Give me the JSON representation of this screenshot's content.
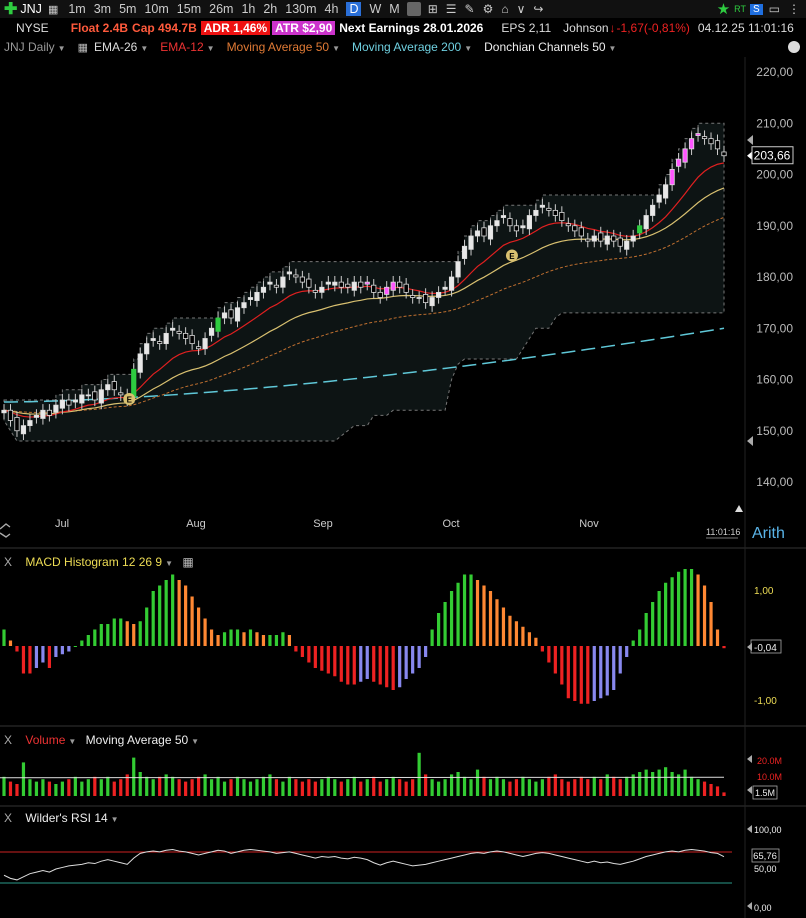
{
  "toolbar": {
    "symbol": "JNJ",
    "timeframes": [
      "1m",
      "3m",
      "5m",
      "10m",
      "15m",
      "26m",
      "1h",
      "2h",
      "130m",
      "4h",
      "D",
      "W",
      "M"
    ],
    "active_timeframe": "D",
    "rt_label": "RT",
    "s_label": "S"
  },
  "info": {
    "exchange": "NYSE",
    "float": "Float 2.4B",
    "cap": "Cap 494.7B",
    "adr_label": "ADR",
    "adr_value": "1,46%",
    "atr": "ATR $2,90",
    "earnings": "Next Earnings 28.01.2026",
    "eps": "EPS 2,11",
    "company": "Johnson",
    "change": "-1,67(-0,81%)",
    "datetime": "04.12.25 11:01:16"
  },
  "indicators": {
    "chart_name": "JNJ Daily",
    "ema26": "EMA-26",
    "ema12": "EMA-12",
    "ma50": "Moving Average 50",
    "ma200": "Moving Average 200",
    "donchian": "Donchian Channels 50"
  },
  "colors": {
    "up": "#e8e8e8",
    "down": "#000000",
    "green": "#2ecc40",
    "magenta": "#ff55ff",
    "ema12": "#e02020",
    "ema26": "#d8c070",
    "ma50": "#c07030",
    "ma200": "#5fc8d8",
    "macd_green": "#33cc33",
    "macd_orange": "#ff8833",
    "macd_red": "#ee2222",
    "macd_blue": "#8888ee"
  },
  "price_axis": {
    "ticks": [
      "220,00",
      "210,00",
      "200,00",
      "190,00",
      "180,00",
      "170,00",
      "160,00",
      "150,00",
      "140,00"
    ],
    "last_price": "203,66"
  },
  "time_axis": {
    "months": [
      "Jul",
      "Aug",
      "Sep",
      "Oct",
      "Nov"
    ],
    "time_label": "11:01:16",
    "scale_label": "Arith"
  },
  "macd": {
    "title": "MACD Histogram 12 26 9",
    "ticks": [
      "1,00",
      "-1,00"
    ],
    "current": "-0,04"
  },
  "volume": {
    "title": "Volume",
    "ma_title": "Moving Average 50",
    "ticks": [
      "20.0M",
      "10.0M"
    ],
    "current": "1.5M"
  },
  "rsi": {
    "title": "Wilder's RSI 14",
    "ticks": [
      "100,00",
      "50,00",
      "0,00"
    ],
    "current": "65,76"
  },
  "close_label": "X",
  "earnings_marker": "E",
  "chart_data": {
    "type": "candlestick",
    "symbol": "JNJ",
    "ylim": [
      135,
      223
    ],
    "closes": [
      154,
      152,
      150,
      151,
      152,
      153,
      154,
      153,
      155,
      156,
      155,
      156,
      157,
      157,
      156,
      158,
      159,
      158,
      157,
      156,
      162,
      165,
      167,
      168,
      167,
      169,
      170,
      169,
      168,
      167,
      166,
      168,
      170,
      172,
      173,
      172,
      174,
      175,
      176,
      177,
      178,
      179,
      178,
      180,
      181,
      180,
      179,
      178,
      177,
      178,
      179,
      179,
      178,
      178,
      179,
      178,
      179,
      177,
      176,
      178,
      179,
      178,
      177,
      176,
      176,
      175,
      176,
      177,
      178,
      180,
      183,
      186,
      188,
      189,
      188,
      190,
      191,
      192,
      190,
      189,
      190,
      192,
      193,
      194,
      193,
      192,
      191,
      190,
      189,
      188,
      187,
      188,
      187,
      188,
      187,
      186,
      187,
      188,
      190,
      192,
      194,
      196,
      198,
      201,
      203,
      205,
      207,
      208,
      207,
      206,
      205,
      203.66
    ],
    "months": [
      "Jul",
      "Aug",
      "Sep",
      "Oct",
      "Nov"
    ],
    "macd_hist": [
      0.3,
      0.1,
      -0.1,
      -0.5,
      -0.5,
      -0.4,
      -0.3,
      -0.4,
      -0.2,
      -0.15,
      -0.1,
      0.0,
      0.1,
      0.2,
      0.3,
      0.4,
      0.4,
      0.5,
      0.5,
      0.45,
      0.4,
      0.45,
      0.7,
      1.0,
      1.1,
      1.2,
      1.3,
      1.2,
      1.1,
      0.9,
      0.7,
      0.5,
      0.3,
      0.2,
      0.25,
      0.3,
      0.3,
      0.25,
      0.3,
      0.25,
      0.2,
      0.2,
      0.2,
      0.25,
      0.2,
      -0.1,
      -0.2,
      -0.3,
      -0.4,
      -0.45,
      -0.5,
      -0.55,
      -0.65,
      -0.7,
      -0.7,
      -0.65,
      -0.6,
      -0.65,
      -0.7,
      -0.75,
      -0.8,
      -0.75,
      -0.6,
      -0.5,
      -0.4,
      -0.2,
      0.3,
      0.6,
      0.8,
      1.0,
      1.15,
      1.3,
      1.3,
      1.2,
      1.1,
      1.0,
      0.85,
      0.7,
      0.55,
      0.45,
      0.35,
      0.25,
      0.15,
      -0.1,
      -0.3,
      -0.5,
      -0.7,
      -0.95,
      -1.0,
      -1.05,
      -1.05,
      -1.0,
      -0.95,
      -0.9,
      -0.8,
      -0.5,
      -0.2,
      0.1,
      0.3,
      0.6,
      0.8,
      1.0,
      1.15,
      1.25,
      1.35,
      1.4,
      1.4,
      1.3,
      1.1,
      0.8,
      0.3,
      -0.04
    ],
    "volume_m": [
      8,
      6,
      5,
      14,
      7,
      6,
      7,
      6,
      5,
      6,
      7,
      8,
      6,
      7,
      8,
      7,
      8,
      6,
      7,
      9,
      16,
      10,
      8,
      7,
      8,
      9,
      8,
      7,
      6,
      7,
      8,
      9,
      7,
      8,
      6,
      7,
      8,
      7,
      6,
      7,
      8,
      9,
      7,
      6,
      8,
      7,
      6,
      7,
      6,
      7,
      8,
      7,
      6,
      7,
      8,
      6,
      7,
      8,
      6,
      7,
      8,
      7,
      6,
      7,
      18,
      9,
      7,
      6,
      7,
      9,
      10,
      8,
      7,
      11,
      8,
      7,
      8,
      7,
      6,
      7,
      8,
      7,
      6,
      7,
      8,
      9,
      7,
      6,
      7,
      8,
      7,
      8,
      7,
      9,
      8,
      7,
      8,
      9,
      10,
      11,
      10,
      11,
      12,
      10,
      9,
      11,
      8,
      7,
      6,
      5,
      4,
      1.5
    ],
    "rsi": [
      42,
      38,
      36,
      40,
      44,
      46,
      48,
      46,
      50,
      52,
      54,
      55,
      56,
      58,
      57,
      60,
      62,
      60,
      58,
      56,
      64,
      70,
      72,
      73,
      72,
      74,
      75,
      73,
      72,
      70,
      68,
      70,
      72,
      74,
      73,
      70,
      72,
      74,
      75,
      74,
      73,
      72,
      70,
      71,
      72,
      70,
      68,
      66,
      64,
      66,
      65,
      66,
      64,
      63,
      65,
      64,
      62,
      58,
      55,
      58,
      60,
      58,
      56,
      54,
      55,
      56,
      58,
      60,
      62,
      64,
      66,
      68,
      70,
      71,
      70,
      72,
      73,
      72,
      70,
      68,
      66,
      68,
      70,
      71,
      70,
      68,
      66,
      64,
      62,
      60,
      58,
      60,
      58,
      59,
      57,
      56,
      58,
      60,
      63,
      66,
      68,
      70,
      72,
      73,
      72,
      74,
      75,
      74,
      73,
      71,
      70,
      65.76
    ]
  }
}
